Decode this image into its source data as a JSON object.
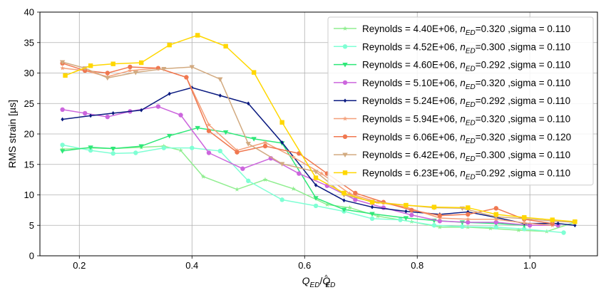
{
  "chart_data": {
    "type": "line",
    "xlabel": "Q_ED/Q^_ED",
    "xlabel_parts": {
      "main_a": "Q",
      "sub_a": "ED",
      "sep": "/",
      "main_b": "Q",
      "sup_b": "^",
      "sub_b": "ED"
    },
    "ylabel": "RMS strain [µs]",
    "xlim": [
      0.13,
      1.12
    ],
    "ylim": [
      0,
      40
    ],
    "xticks": [
      0.2,
      0.4,
      0.6,
      0.8,
      1.0
    ],
    "xtick_labels": [
      "0.2",
      "0.4",
      "0.6",
      "0.8",
      "1.0"
    ],
    "yticks": [
      0,
      5,
      10,
      15,
      20,
      25,
      30,
      35,
      40
    ],
    "ytick_labels": [
      "0",
      "5",
      "10",
      "15",
      "20",
      "25",
      "30",
      "35",
      "40"
    ],
    "grid": true,
    "legend_position": "upper-right",
    "series": [
      {
        "name": "Reynolds = 4.40E+06, n_ED=0.320 ,sigma = 0.110",
        "label": {
          "prefix": "Reynolds = 4.40E+06, ",
          "n": "n",
          "sub": "ED",
          "suffix": "=0.320 ,sigma = 0.110"
        },
        "color": "#90ee90",
        "marker": "star",
        "x": [
          0.17,
          0.22,
          0.26,
          0.31,
          0.35,
          0.38,
          0.42,
          0.48,
          0.53,
          0.58,
          0.64,
          0.68,
          0.73,
          0.79,
          0.84,
          0.89,
          0.93,
          0.98,
          1.03,
          1.08
        ],
        "y": [
          17.5,
          17.7,
          17.6,
          17.8,
          18.0,
          17.3,
          13.0,
          10.9,
          12.5,
          11.0,
          8.4,
          7.9,
          6.5,
          5.6,
          4.7,
          4.7,
          4.5,
          4.2,
          4.0,
          5.5
        ]
      },
      {
        "name": "Reynolds = 4.52E+06, n_ED=0.300 ,sigma = 0.110",
        "label": {
          "prefix": "Reynolds = 4.52E+06, ",
          "n": "n",
          "sub": "ED",
          "suffix": "=0.300 ,sigma = 0.110"
        },
        "color": "#7fffd4",
        "marker": "circle",
        "x": [
          0.17,
          0.22,
          0.26,
          0.3,
          0.35,
          0.4,
          0.45,
          0.5,
          0.56,
          0.62,
          0.67,
          0.72,
          0.77,
          0.83,
          0.88,
          0.94,
          0.99,
          1.06
        ],
        "y": [
          18.2,
          17.3,
          16.8,
          16.9,
          17.7,
          17.7,
          17.2,
          12.3,
          9.2,
          8.2,
          7.3,
          6.1,
          5.9,
          5.0,
          4.8,
          4.7,
          4.4,
          3.8
        ]
      },
      {
        "name": "Reynolds = 4.60E+06, n_ED=0.292 ,sigma = 0.110",
        "label": {
          "prefix": "Reynolds = 4.60E+06, ",
          "n": "n",
          "sub": "ED",
          "suffix": "=0.292 ,sigma = 0.110"
        },
        "color": "#2ee878",
        "marker": "triangle-down",
        "x": [
          0.17,
          0.22,
          0.26,
          0.31,
          0.36,
          0.41,
          0.46,
          0.51,
          0.56,
          0.62,
          0.67,
          0.72,
          0.78,
          0.83,
          0.88,
          0.94,
          0.99,
          1.05
        ],
        "y": [
          17.2,
          17.8,
          17.6,
          18.0,
          19.7,
          21.0,
          20.3,
          19.2,
          18.5,
          9.5,
          7.6,
          6.9,
          6.2,
          5.8,
          5.5,
          5.3,
          5.0,
          5.0
        ]
      },
      {
        "name": "Reynolds = 5.10E+06, n_ED=0.320 ,sigma = 0.110",
        "label": {
          "prefix": "Reynolds = 5.10E+06, ",
          "n": "n",
          "sub": "ED",
          "suffix": "=0.320 ,sigma = 0.110"
        },
        "color": "#cc66dd",
        "marker": "circle",
        "x": [
          0.17,
          0.21,
          0.25,
          0.29,
          0.34,
          0.38,
          0.43,
          0.49,
          0.54,
          0.59,
          0.64,
          0.69,
          0.74,
          0.79,
          0.84,
          0.89,
          0.94,
          1.0,
          1.05
        ],
        "y": [
          24.0,
          23.4,
          22.8,
          23.7,
          24.5,
          23.1,
          16.9,
          14.3,
          16.0,
          13.5,
          11.5,
          9.2,
          7.9,
          6.7,
          5.7,
          5.5,
          5.5,
          5.0,
          5.0
        ]
      },
      {
        "name": "Reynolds = 5.24E+06, n_ED=0.292 ,sigma = 0.110",
        "label": {
          "prefix": "Reynolds = 5.24E+06, ",
          "n": "n",
          "sub": "ED",
          "suffix": "=0.292 ,sigma = 0.110"
        },
        "color": "#0a1a80",
        "marker": "diamond",
        "x": [
          0.17,
          0.22,
          0.26,
          0.31,
          0.36,
          0.4,
          0.45,
          0.5,
          0.56,
          0.62,
          0.67,
          0.72,
          0.78,
          0.84,
          0.89,
          0.94,
          0.99,
          1.05,
          1.08
        ],
        "y": [
          22.4,
          23.0,
          23.4,
          23.9,
          26.6,
          27.6,
          26.3,
          25.0,
          18.6,
          11.6,
          9.1,
          8.0,
          7.3,
          6.8,
          7.2,
          6.3,
          5.3,
          5.3,
          5.0
        ]
      },
      {
        "name": "Reynolds = 5.94E+06, n_ED=0.320 ,sigma = 0.110",
        "label": {
          "prefix": "Reynolds = 5.94E+06, ",
          "n": "n",
          "sub": "ED",
          "suffix": "=0.320 ,sigma = 0.110"
        },
        "color": "#f4a07a",
        "marker": "star",
        "x": [
          0.17,
          0.21,
          0.25,
          0.29,
          0.34,
          0.39,
          0.43,
          0.48,
          0.53,
          0.58,
          0.63,
          0.68,
          0.73,
          0.78,
          0.84,
          0.89,
          0.94,
          0.99,
          1.04
        ],
        "y": [
          30.8,
          30.4,
          29.4,
          30.4,
          30.8,
          29.3,
          21.5,
          17.3,
          18.6,
          16.2,
          13.5,
          10.2,
          8.8,
          8.0,
          6.2,
          6.0,
          6.0,
          5.4,
          5.0
        ]
      },
      {
        "name": "Reynolds = 6.06E+06, n_ED=0.320 ,sigma = 0.120",
        "label": {
          "prefix": "Reynolds = 6.06E+06, ",
          "n": "n",
          "sub": "ED",
          "suffix": "=0.320 ,sigma = 0.120"
        },
        "color": "#f07850",
        "marker": "circle",
        "x": [
          0.17,
          0.21,
          0.25,
          0.29,
          0.34,
          0.39,
          0.43,
          0.48,
          0.53,
          0.59,
          0.64,
          0.69,
          0.74,
          0.79,
          0.84,
          0.89,
          0.94,
          0.99,
          1.04
        ],
        "y": [
          31.6,
          30.4,
          30.0,
          31.0,
          30.8,
          29.3,
          20.5,
          17.0,
          18.0,
          16.8,
          13.5,
          10.3,
          8.8,
          7.5,
          6.6,
          6.8,
          7.8,
          6.0,
          5.3
        ]
      },
      {
        "name": "Reynolds = 6.42E+06, n_ED=0.300 ,sigma = 0.110",
        "label": {
          "prefix": "Reynolds = 6.42E+06, ",
          "n": "n",
          "sub": "ED",
          "suffix": "=0.300 ,sigma = 0.110"
        },
        "color": "#d2aa80",
        "marker": "triangle-down",
        "x": [
          0.17,
          0.21,
          0.25,
          0.3,
          0.35,
          0.4,
          0.45,
          0.5,
          0.56,
          0.62,
          0.67,
          0.72,
          0.78,
          0.83,
          0.88,
          0.94,
          0.99,
          1.04,
          1.08
        ],
        "y": [
          31.8,
          30.8,
          29.2,
          30.1,
          30.7,
          31.0,
          29.0,
          18.4,
          15.1,
          13.8,
          10.0,
          8.9,
          8.3,
          7.9,
          7.8,
          6.4,
          6.1,
          5.7,
          5.5
        ]
      },
      {
        "name": "Reynolds = 6.23E+06, n_ED=0.292 ,sigma = 0.110",
        "label": {
          "prefix": "Reynolds = 6.23E+06, ",
          "n": "n",
          "sub": "ED",
          "suffix": "=0.292 ,sigma = 0.110"
        },
        "color": "#ffd700",
        "marker": "square",
        "x": [
          0.175,
          0.22,
          0.26,
          0.31,
          0.36,
          0.41,
          0.46,
          0.51,
          0.56,
          0.62,
          0.67,
          0.72,
          0.78,
          0.83,
          0.89,
          0.94,
          0.99,
          1.04,
          1.08
        ],
        "y": [
          29.6,
          31.2,
          31.5,
          31.7,
          34.6,
          36.2,
          34.4,
          30.1,
          21.9,
          12.8,
          10.3,
          8.8,
          8.3,
          8.0,
          7.9,
          6.8,
          6.3,
          5.9,
          5.6
        ]
      }
    ]
  }
}
